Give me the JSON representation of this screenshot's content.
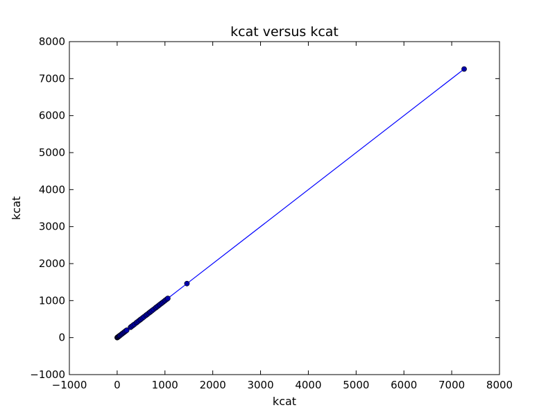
{
  "chart_data": {
    "type": "line",
    "title": "kcat versus kcat",
    "xlabel": "kcat",
    "ylabel": "kcat",
    "xlim": [
      -1000,
      8000
    ],
    "ylim": [
      -1000,
      8000
    ],
    "xticks": [
      -1000,
      0,
      1000,
      2000,
      3000,
      4000,
      5000,
      6000,
      7000,
      8000
    ],
    "yticks": [
      -1000,
      0,
      1000,
      2000,
      3000,
      4000,
      5000,
      6000,
      7000,
      8000
    ],
    "xtick_labels": [
      "−1000",
      "0",
      "1000",
      "2000",
      "3000",
      "4000",
      "5000",
      "6000",
      "7000",
      "8000"
    ],
    "ytick_labels": [
      "−1000",
      "0",
      "1000",
      "2000",
      "3000",
      "4000",
      "5000",
      "6000",
      "7000",
      "8000"
    ],
    "grid": false,
    "legend": "none",
    "series": [
      {
        "color": "#0000ff",
        "marker": "circle",
        "marker_color": "#0000aa",
        "x": [
          0,
          5,
          10,
          20,
          30,
          40,
          50,
          60,
          80,
          100,
          120,
          140,
          160,
          180,
          200,
          280,
          300,
          330,
          360,
          400,
          420,
          450,
          480,
          500,
          530,
          560,
          600,
          620,
          650,
          680,
          700,
          730,
          760,
          800,
          820,
          850,
          880,
          900,
          930,
          960,
          990,
          1010,
          1040,
          1060,
          1460,
          7260
        ],
        "y": [
          0,
          5,
          10,
          20,
          30,
          40,
          50,
          60,
          80,
          100,
          120,
          140,
          160,
          180,
          200,
          280,
          300,
          330,
          360,
          400,
          420,
          450,
          480,
          500,
          530,
          560,
          600,
          620,
          650,
          680,
          700,
          730,
          760,
          800,
          820,
          850,
          880,
          900,
          930,
          960,
          990,
          1010,
          1040,
          1060,
          1460,
          7260
        ]
      }
    ]
  }
}
